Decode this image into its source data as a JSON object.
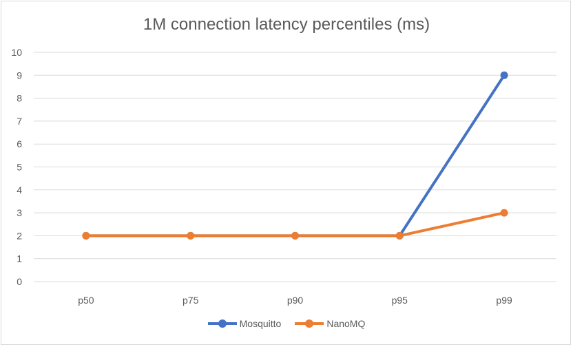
{
  "chart_data": {
    "type": "line",
    "title": "1M connection latency percentiles (ms)",
    "categories": [
      "p50",
      "p75",
      "p90",
      "p95",
      "p99"
    ],
    "series": [
      {
        "name": "Mosquitto",
        "color": "#4472c4",
        "values": [
          2,
          2,
          2,
          2,
          9
        ]
      },
      {
        "name": "NanoMQ",
        "color": "#ed7d31",
        "values": [
          2,
          2,
          2,
          2,
          3
        ]
      }
    ],
    "xlabel": "",
    "ylabel": "",
    "ylim": [
      0,
      10
    ],
    "yticks": [
      0,
      1,
      2,
      3,
      4,
      5,
      6,
      7,
      8,
      9,
      10
    ],
    "grid": true,
    "legend_position": "bottom"
  }
}
